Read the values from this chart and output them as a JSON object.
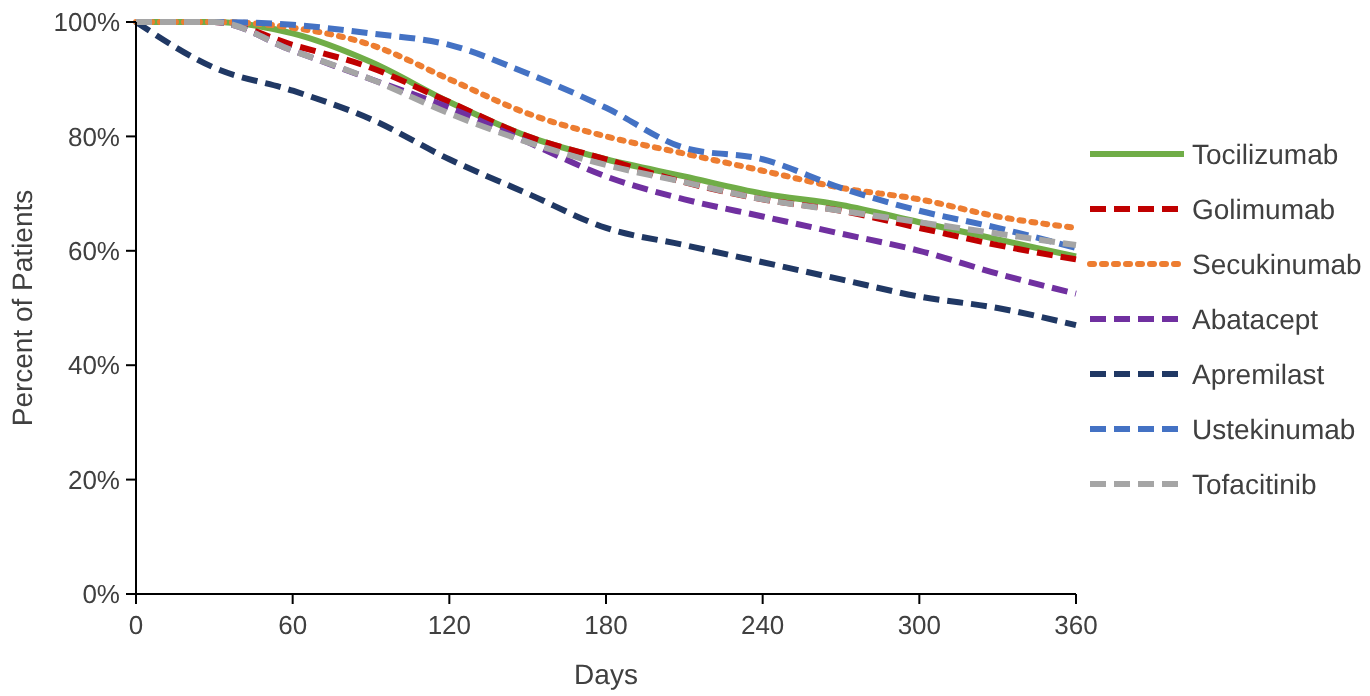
{
  "chart_data": {
    "type": "line",
    "xlabel": "Days",
    "ylabel": "Percent of Patients",
    "xlim": [
      0,
      360
    ],
    "xticks": [
      0,
      60,
      120,
      180,
      240,
      300,
      360
    ],
    "ylim": [
      0,
      100
    ],
    "yticks": [
      {
        "value": 0,
        "label": "0%"
      },
      {
        "value": 20,
        "label": "20%"
      },
      {
        "value": 40,
        "label": "40%"
      },
      {
        "value": 60,
        "label": "60%"
      },
      {
        "value": 80,
        "label": "80%"
      },
      {
        "value": 100,
        "label": "100%"
      }
    ],
    "x": [
      0,
      30,
      60,
      90,
      120,
      150,
      180,
      210,
      240,
      270,
      300,
      330,
      360
    ],
    "grid": false,
    "legend": "right",
    "marker": "none",
    "series": [
      {
        "name": "Tocilizumab",
        "color": "#70ad47",
        "line_style": "solid",
        "values": [
          100,
          100,
          98,
          93,
          86,
          80,
          76,
          73,
          70,
          68,
          65,
          62,
          59
        ]
      },
      {
        "name": "Golimumab",
        "color": "#c00000",
        "line_style": "dashed",
        "values": [
          100,
          100,
          96,
          92,
          86,
          80,
          76,
          72,
          69,
          67,
          64,
          61,
          58.5
        ]
      },
      {
        "name": "Secukinumab",
        "color": "#ed7d31",
        "line_style": "dotted",
        "values": [
          100,
          100,
          99,
          96,
          90,
          84,
          80,
          77,
          74,
          71,
          69,
          66,
          64
        ]
      },
      {
        "name": "Abatacept",
        "color": "#7030a0",
        "line_style": "dashed",
        "values": [
          100,
          100,
          95,
          90,
          85,
          79,
          73,
          69,
          66,
          63,
          60,
          56,
          52.5
        ]
      },
      {
        "name": "Apremilast",
        "color": "#203864",
        "line_style": "dashed",
        "values": [
          100,
          92,
          88,
          83,
          76,
          70,
          64,
          61,
          58,
          55,
          52,
          50,
          47
        ]
      },
      {
        "name": "Ustekinumab",
        "color": "#4472c4",
        "line_style": "dashed",
        "values": [
          100,
          100,
          99.5,
          98,
          96,
          91,
          85,
          78,
          76,
          71,
          67,
          64,
          60.5
        ]
      },
      {
        "name": "Tofacitinib",
        "color": "#a5a5a5",
        "line_style": "dashed",
        "values": [
          100,
          100,
          95,
          90,
          84,
          79,
          75,
          72,
          69,
          67,
          65,
          63,
          61
        ]
      }
    ]
  }
}
